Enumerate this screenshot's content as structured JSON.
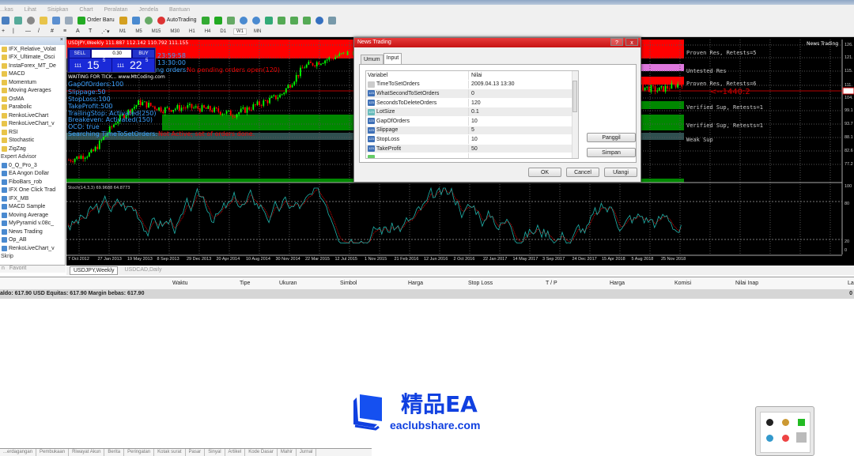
{
  "window": {
    "title": "InstaForex - [USDJPY,Weekly]"
  },
  "menu": [
    "...kas",
    "Lihat",
    "Sisipkan",
    "Chart",
    "Peralatan",
    "Jendela",
    "Bantuan"
  ],
  "toolbar": {
    "new_order": "Order Baru",
    "autotrading": "AutoTrading",
    "timeframes": [
      "M1",
      "M5",
      "M15",
      "M30",
      "H1",
      "H4",
      "D1",
      "W1",
      "MN"
    ],
    "active_timeframe": "W1"
  },
  "navigator": {
    "items": [
      {
        "label": "IFX_Relative_Volat",
        "type": "indicator"
      },
      {
        "label": "IFX_Ultimate_Osci",
        "type": "indicator"
      },
      {
        "label": "InstaForex_MT_De",
        "type": "indicator"
      },
      {
        "label": "MACD",
        "type": "indicator"
      },
      {
        "label": "Momentum",
        "type": "indicator"
      },
      {
        "label": "Moving Averages",
        "type": "indicator"
      },
      {
        "label": "OsMA",
        "type": "indicator"
      },
      {
        "label": "Parabolic",
        "type": "indicator"
      },
      {
        "label": "RenkoLiveChart",
        "type": "indicator"
      },
      {
        "label": "RenkoLiveChart_v",
        "type": "indicator"
      },
      {
        "label": "RSI",
        "type": "indicator"
      },
      {
        "label": "Stochastic",
        "type": "indicator"
      },
      {
        "label": "ZigZag",
        "type": "indicator"
      },
      {
        "label": "Expert Advisor",
        "type": "category"
      },
      {
        "label": "0_Q_Pro_3",
        "type": "expert"
      },
      {
        "label": "EA Angon Dollar",
        "type": "expert"
      },
      {
        "label": "FiboBars_rob",
        "type": "expert"
      },
      {
        "label": "IFX One Click Trad",
        "type": "expert"
      },
      {
        "label": "IFX_MB",
        "type": "expert"
      },
      {
        "label": "MACD Sample",
        "type": "expert"
      },
      {
        "label": "Moving Average",
        "type": "expert"
      },
      {
        "label": "MyPyramid v.08c_",
        "type": "expert"
      },
      {
        "label": "News Trading",
        "type": "expert"
      },
      {
        "label": "Op_AB",
        "type": "expert"
      },
      {
        "label": "RenkoLiveChart_v",
        "type": "expert"
      },
      {
        "label": "Skrip",
        "type": "category"
      }
    ],
    "tabs": [
      "n",
      "Favorit"
    ]
  },
  "chart": {
    "header": "USDJPY,Weekly  111.887 112.142 110.792 111.155",
    "ea_name": "News Trading",
    "one_click": {
      "sell": "SELL",
      "buy": "BUY",
      "lot": "0.30",
      "sell_price_big": "15",
      "sell_price_prefix": "111",
      "sell_price_sup": "5",
      "buy_price_big": "22",
      "buy_price_prefix": "111",
      "buy_price_sup": "5"
    },
    "overlay": {
      "time1": "23:59:58",
      "time2": "13:30:00",
      "pending": "ng orders:",
      "pending_value": "No pending orders open(120)",
      "waiting": "WAITING FOR TICK...  www.MtCoding.com",
      "gap": "GapOfOrders:100",
      "slippage": "Slippage:50",
      "stoploss": "StopLoss:100",
      "takeprofit": "TakeProfit:500",
      "trailing": "TrailingStop: Activated(250)",
      "breakeven": "Breakeven: Activated(150)",
      "oco": "OCO: true",
      "searching": "Searching TimeToSetOrders:",
      "searching_value": "Not Active; set of orders done."
    },
    "zones": [
      {
        "label": "Proven Res, Retests=5",
        "color": "#ff0000"
      },
      {
        "label": "Untested Res",
        "color": "#dd77dd"
      },
      {
        "label": "Proven Res, Retests=6",
        "color": "#ff0000"
      },
      {
        "label": "Verified Sup, Retests=1",
        "color": "#008800"
      },
      {
        "label": "Verified Sup, Retests=1",
        "color": "#008800"
      },
      {
        "label": "Weak Sup",
        "color": "#3f5f5f"
      }
    ],
    "line_label": "<--1440:2",
    "price_axis": [
      "126.",
      "121.",
      "115.",
      "111.",
      "104.",
      "99.1",
      "93.7",
      "88.1",
      "82.6",
      "77.2"
    ],
    "current_price": "111",
    "stoch_label": "Stoch(14,3,3) 69.9688 64.8773",
    "stoch_axis": [
      "100",
      "80",
      "20",
      "0"
    ],
    "time_axis": [
      "7 Oct 2012",
      "27 Jan 2013",
      "19 May 2013",
      "8 Sep 2013",
      "29 Dec 2013",
      "20 Apr 2014",
      "10 Aug 2014",
      "30 Nov 2014",
      "22 Mar 2015",
      "12 Jul 2015",
      "1 Nov 2015",
      "21 Feb 2016",
      "12 Jun 2016",
      "2 Oct 2016",
      "22 Jan 2017",
      "14 May 2017",
      "3 Sep 2017",
      "24 Dec 2017",
      "15 Apr 2018",
      "5 Aug 2018",
      "25 Nov 2018"
    ],
    "tabs": [
      "USDJPY,Weekly",
      "USDCAD,Daily"
    ],
    "colors": {
      "bull": "#00ff00",
      "bear": "#ff0000",
      "stoch_main": "#20b2aa",
      "stoch_signal": "#ff0000"
    }
  },
  "dialog": {
    "title": "News Trading",
    "help": "?",
    "close": "x",
    "tabs": [
      "Umum",
      "Input"
    ],
    "active_tab": "Input",
    "columns": [
      "Variabel",
      "Nilai"
    ],
    "rows": [
      {
        "name": "TimeToSetOrders",
        "value": "2009.04.13 13:30"
      },
      {
        "name": "WhatSecondToSetOrders",
        "value": "0"
      },
      {
        "name": "SecondsToDeleteOrders",
        "value": "120"
      },
      {
        "name": "LotSize",
        "value": "0.1"
      },
      {
        "name": "GapOfOrders",
        "value": "10"
      },
      {
        "name": "Slippage",
        "value": "5"
      },
      {
        "name": "StopLoss",
        "value": "10"
      },
      {
        "name": "TakeProfit",
        "value": "50"
      }
    ],
    "load": "Panggil",
    "save": "Simpan",
    "ok": "OK",
    "cancel": "Cancel",
    "reset": "Ulangi"
  },
  "terminal": {
    "columns": [
      "Waktu",
      "Tipe",
      "Ukuran",
      "Simbol",
      "Harga",
      "Stop Loss",
      "T / P",
      "Harga",
      "Komisi",
      "Nilai Inap",
      "La"
    ],
    "balance": "aldo: 617.90 USD  Equitas: 617.90  Margin bebas: 617.90",
    "right_value": "0",
    "tabs": [
      "...erdagangan",
      "Pembukaan",
      "Riwayat Akun",
      "Berita",
      "Peringatan",
      "Kotak surat",
      "Pasar",
      "Sinyal",
      "Artikel",
      "Kode Dasar",
      "Mahir",
      "Jurnal"
    ]
  },
  "watermark": {
    "title": "精品EA",
    "url": "eaclubshare.com"
  }
}
